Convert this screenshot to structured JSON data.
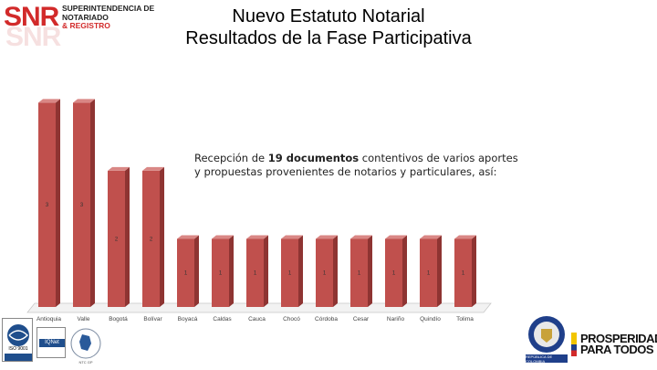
{
  "header": {
    "logo_mark": "SNR",
    "logo_line1": "SUPERINTENDENCIA DE",
    "logo_line2": "NOTARIADO",
    "logo_line3": "& REGISTRO",
    "title_line1": "Nuevo Estatuto Notarial",
    "title_line2": "Resultados de la Fase Participativa"
  },
  "annotation": {
    "pre": "Recepción de ",
    "bold": "19 documentos",
    "post": " contentivos de varios aportes y propuestas provenientes de notarios y particulares, así:"
  },
  "chart_data": {
    "type": "bar",
    "categories": [
      "Antioquia",
      "Valle",
      "Bogotá",
      "Bolívar",
      "Boyacá",
      "Caldas",
      "Cauca",
      "Chocó",
      "Córdoba",
      "Cesar",
      "Nariño",
      "Quindío",
      "Tolima"
    ],
    "values": [
      3,
      3,
      2,
      2,
      1,
      1,
      1,
      1,
      1,
      1,
      1,
      1,
      1
    ],
    "title": "",
    "xlabel": "",
    "ylabel": "",
    "ylim": [
      0,
      3.3
    ],
    "grid": false,
    "legend": "none",
    "bar_color": "#c0504d",
    "bar_side_color": "#8e3432",
    "bar_top_color": "#d98785"
  },
  "footer": {
    "left_badge_1": "ISO 9001",
    "left_badge_2": "IQNet",
    "left_badge_3": "NTC GP",
    "right_text_line1": "PROSPERIDAD",
    "right_text_line2": "PARA TODOS",
    "right_shield_text": "REPÚBLICA DE COLOMBIA"
  }
}
